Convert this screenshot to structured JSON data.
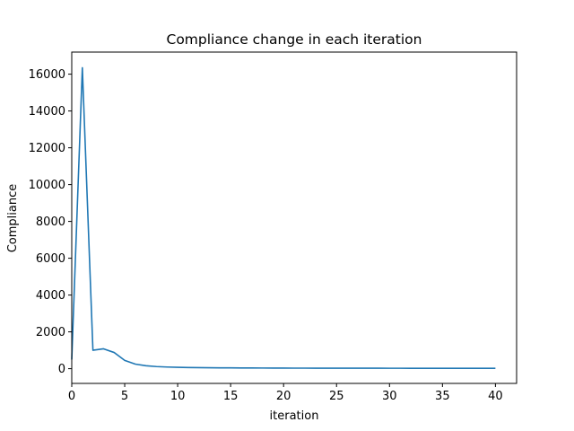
{
  "chart_data": {
    "type": "line",
    "title": "Compliance change in each iteration",
    "xlabel": "iteration",
    "ylabel": "Compliance",
    "xlim": [
      0,
      42
    ],
    "ylim": [
      -800,
      17200
    ],
    "xticks": [
      0,
      5,
      10,
      15,
      20,
      25,
      30,
      35,
      40
    ],
    "yticks": [
      0,
      2000,
      4000,
      6000,
      8000,
      10000,
      12000,
      14000,
      16000
    ],
    "grid": false,
    "line_color": "#1f77b4",
    "series": [
      {
        "x": [
          0,
          1,
          2,
          3,
          4,
          5,
          6,
          7,
          8,
          9,
          10,
          11,
          12,
          13,
          14,
          15,
          16,
          17,
          18,
          19,
          20,
          21,
          22,
          23,
          24,
          25,
          26,
          27,
          28,
          29,
          30,
          31,
          32,
          33,
          34,
          35,
          36,
          37,
          38,
          39,
          40
        ],
        "values": [
          500,
          16350,
          1000,
          1080,
          880,
          450,
          250,
          160,
          115,
          90,
          75,
          65,
          58,
          52,
          47,
          43,
          40,
          37,
          35,
          33,
          31,
          30,
          29,
          28,
          27,
          26,
          25,
          25,
          24,
          24,
          23,
          23,
          22,
          22,
          21,
          21,
          21,
          20,
          20,
          20,
          20
        ]
      }
    ]
  }
}
